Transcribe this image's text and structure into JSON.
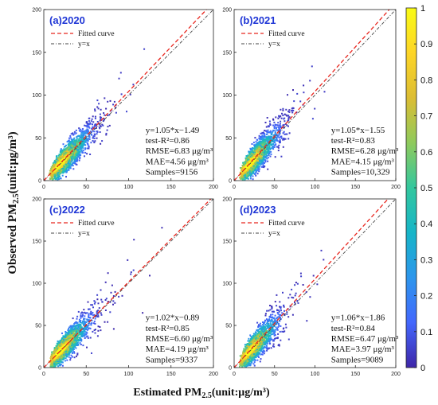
{
  "figure": {
    "ylabel_main": "Observed PM",
    "ylabel_sub": "2.5",
    "ylabel_unit": "(unit:μg/m³)",
    "xlabel_main": "Estimated PM",
    "xlabel_sub": "2.5",
    "xlabel_unit": "(unit:μg/m³)"
  },
  "colorbar": {
    "ticks": [
      "1",
      "0.9",
      "0.8",
      "0.7",
      "0.6",
      "0.5",
      "0.4",
      "0.3",
      "0.2",
      "0.1",
      "0"
    ],
    "range": [
      0,
      1
    ],
    "colors": [
      "#3e26a8",
      "#4367fd",
      "#2d96ec",
      "#16b5c8",
      "#33c79e",
      "#8fca5c",
      "#dcbd33",
      "#fdd527",
      "#f9fb15"
    ]
  },
  "legend": {
    "fitted": "Fitted curve",
    "yx": "y=x",
    "fitted_color": "#e8261e",
    "yx_color": "#444444"
  },
  "chart_data": [
    {
      "type": "scatter",
      "title": "(a)2020",
      "xlim": [
        0,
        200
      ],
      "ylim": [
        0,
        200
      ],
      "xticks": [
        "0",
        "50",
        "100",
        "150",
        "200"
      ],
      "yticks": [
        "0",
        "50",
        "100",
        "150",
        "200"
      ],
      "fit": {
        "slope": 1.05,
        "intercept": -1.49
      },
      "stats": [
        "y=1.05*x−1.49",
        "test-R²=0.86",
        "RMSE=6.83 μg/m³",
        "MAE=4.56 μg/m³",
        "Samples=9156"
      ],
      "samples": 9156,
      "r2": 0.86,
      "rmse": 6.83,
      "mae": 4.56,
      "spread": 0.16,
      "max_x": 150
    },
    {
      "type": "scatter",
      "title": "(b)2021",
      "xlim": [
        0,
        200
      ],
      "ylim": [
        0,
        200
      ],
      "xticks": [
        "0",
        "50",
        "100",
        "150",
        "200"
      ],
      "yticks": [
        "0",
        "50",
        "100",
        "150",
        "200"
      ],
      "fit": {
        "slope": 1.05,
        "intercept": -1.55
      },
      "stats": [
        "y=1.05*x−1.55",
        "test-R²=0.83",
        "RMSE=6.28 μg/m³",
        "MAE=4.15 μg/m³",
        "Samples=10,329"
      ],
      "samples": 10329,
      "r2": 0.83,
      "rmse": 6.28,
      "mae": 4.15,
      "spread": 0.18,
      "max_x": 140
    },
    {
      "type": "scatter",
      "title": "(c)2022",
      "xlim": [
        0,
        200
      ],
      "ylim": [
        0,
        200
      ],
      "xticks": [
        "0",
        "50",
        "100",
        "150",
        "200"
      ],
      "yticks": [
        "0",
        "50",
        "100",
        "150",
        "200"
      ],
      "fit": {
        "slope": 1.02,
        "intercept": -0.89
      },
      "stats": [
        "y=1.02*x−0.89",
        "test-R²=0.85",
        "RMSE=6.60 μg/m³",
        "MAE=4.19 μg/m³",
        "Samples=9337"
      ],
      "samples": 9337,
      "r2": 0.85,
      "rmse": 6.6,
      "mae": 4.19,
      "spread": 0.17,
      "max_x": 145
    },
    {
      "type": "scatter",
      "title": "(d)2023",
      "xlim": [
        0,
        200
      ],
      "ylim": [
        0,
        200
      ],
      "xticks": [
        "0",
        "50",
        "100",
        "150",
        "200"
      ],
      "yticks": [
        "0",
        "50",
        "100",
        "150",
        "200"
      ],
      "fit": {
        "slope": 1.06,
        "intercept": -1.86
      },
      "stats": [
        "y=1.06*x−1.86",
        "test-R²=0.84",
        "RMSE=6.47 μg/m³",
        "MAE=3.97 μg/m³",
        "Samples=9089"
      ],
      "samples": 9089,
      "r2": 0.84,
      "rmse": 6.47,
      "mae": 3.97,
      "spread": 0.17,
      "max_x": 130
    }
  ]
}
